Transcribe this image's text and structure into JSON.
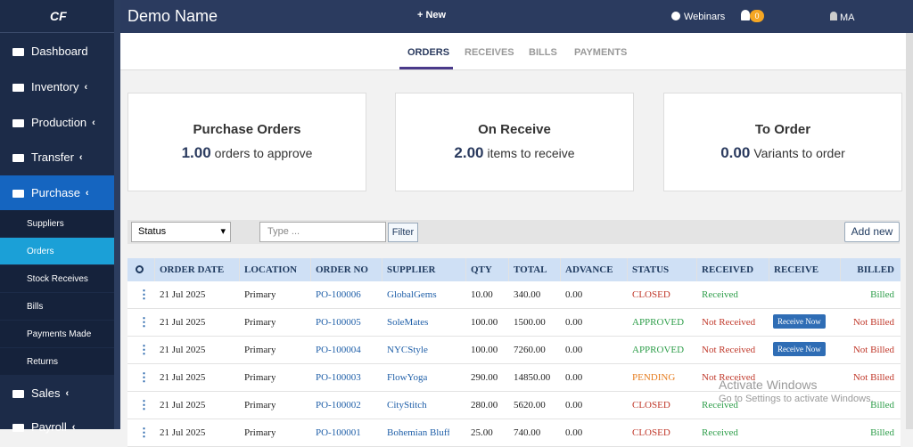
{
  "sidebar": {
    "logo": "CF",
    "items": [
      {
        "label": "Dashboard"
      },
      {
        "label": "Inventory"
      },
      {
        "label": "Production"
      },
      {
        "label": "Transfer"
      },
      {
        "label": "Purchase"
      }
    ],
    "submenu": [
      "Suppliers",
      "Orders",
      "Stock Receives",
      "Bills",
      "Payments Made",
      "Returns"
    ],
    "items_after": [
      {
        "label": "Sales"
      },
      {
        "label": "Payroll"
      }
    ]
  },
  "topbar": {
    "title": "Demo Name",
    "new": "New",
    "webinars": "Webinars",
    "notifications": "0",
    "user": "MA"
  },
  "tabs": [
    "ORDERS",
    "RECEIVES",
    "BILLS",
    "PAYMENTS"
  ],
  "cards": [
    {
      "title": "Purchase Orders",
      "value": "1.00",
      "text": "orders to approve"
    },
    {
      "title": "On Receive",
      "value": "2.00",
      "text": "items to receive"
    },
    {
      "title": "To Order",
      "value": "0.00",
      "text": "Variants to order"
    }
  ],
  "toolbar": {
    "status": "Status",
    "search_placeholder": "Type ...",
    "filter": "Filter",
    "add": "Add new"
  },
  "table": {
    "headers": [
      "ORDER DATE",
      "LOCATION",
      "ORDER NO",
      "SUPPLIER",
      "QTY",
      "TOTAL",
      "ADVANCE",
      "STATUS",
      "RECEIVED",
      "RECEIVE",
      "BILLED"
    ],
    "rows": [
      {
        "date": "21 Jul 2025",
        "location": "Primary",
        "order_no": "PO-100006",
        "supplier": "GlobalGems",
        "qty": "10.00",
        "total": "340.00",
        "advance": "0.00",
        "status": "CLOSED",
        "status_color": "#c0392b",
        "received": "Received",
        "received_color": "#2e9e4a",
        "billed": "Billed",
        "billed_color": "#2e9e4a"
      },
      {
        "date": "21 Jul 2025",
        "location": "Primary",
        "order_no": "PO-100005",
        "supplier": "SoleMates",
        "qty": "100.00",
        "total": "1500.00",
        "advance": "0.00",
        "status": "APPROVED",
        "status_color": "#2e9e4a",
        "received": "Not Received",
        "received_color": "#c0392b",
        "action": "Receive Now",
        "billed": "Not Billed",
        "billed_color": "#c0392b"
      },
      {
        "date": "21 Jul 2025",
        "location": "Primary",
        "order_no": "PO-100004",
        "supplier": "NYCStyle",
        "qty": "100.00",
        "total": "7260.00",
        "advance": "0.00",
        "status": "APPROVED",
        "status_color": "#2e9e4a",
        "received": "Not Received",
        "received_color": "#c0392b",
        "action": "Receive Now",
        "billed": "Not Billed",
        "billed_color": "#c0392b"
      },
      {
        "date": "21 Jul 2025",
        "location": "Primary",
        "order_no": "PO-100003",
        "supplier": "FlowYoga",
        "qty": "290.00",
        "total": "14850.00",
        "advance": "0.00",
        "status": "PENDING",
        "status_color": "#e67e22",
        "received": "Not Received",
        "received_color": "#c0392b",
        "billed": "Not Billed",
        "billed_color": "#c0392b"
      },
      {
        "date": "21 Jul 2025",
        "location": "Primary",
        "order_no": "PO-100002",
        "supplier": "CityStitch",
        "qty": "280.00",
        "total": "5620.00",
        "advance": "0.00",
        "status": "CLOSED",
        "status_color": "#c0392b",
        "received": "Received",
        "received_color": "#2e9e4a",
        "billed": "Billed",
        "billed_color": "#2e9e4a"
      },
      {
        "date": "21 Jul 2025",
        "location": "Primary",
        "order_no": "PO-100001",
        "supplier": "Bohemian Bluff",
        "qty": "25.00",
        "total": "740.00",
        "advance": "0.00",
        "status": "CLOSED",
        "status_color": "#c0392b",
        "received": "Received",
        "received_color": "#2e9e4a",
        "billed": "Billed",
        "billed_color": "#2e9e4a"
      }
    ]
  },
  "watermark": {
    "title": "Activate Windows",
    "text": "Go to Settings to activate Windows."
  }
}
